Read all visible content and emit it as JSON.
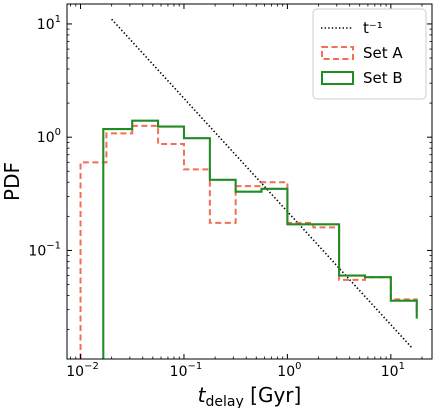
{
  "chart_data": {
    "type": "line",
    "x_scale": "log",
    "y_scale": "log",
    "xlim": [
      0.0074,
      25
    ],
    "ylim": [
      0.011,
      15
    ],
    "xlabel_main": "t",
    "xlabel_sub": "delay",
    "xlabel_unit": "[Gyr]",
    "ylabel": "PDF",
    "x_ticks": [
      {
        "value": 0.01,
        "base": "10",
        "exp": "−2"
      },
      {
        "value": 0.1,
        "base": "10",
        "exp": "−1"
      },
      {
        "value": 1,
        "base": "10",
        "exp": "0"
      },
      {
        "value": 10,
        "base": "10",
        "exp": "1"
      }
    ],
    "y_ticks": [
      {
        "value": 0.1,
        "base": "10",
        "exp": "−1"
      },
      {
        "value": 1,
        "base": "10",
        "exp": "0"
      },
      {
        "value": 10,
        "base": "10",
        "exp": "1"
      }
    ],
    "legend_position": "top-right",
    "grid": false,
    "series": [
      {
        "name": "t⁻¹",
        "kind": "power-law line",
        "style": "dotted",
        "color": "#000000",
        "x": [
          0.02,
          16
        ],
        "y": [
          11.0,
          0.0138
        ]
      },
      {
        "name": "Set A",
        "kind": "step histogram",
        "style": "dashed",
        "color": "#f46d55",
        "edges": [
          0.01,
          0.0178,
          0.0316,
          0.0562,
          0.1,
          0.178,
          0.316,
          0.562,
          1.0,
          1.78,
          3.16,
          5.62,
          10.0,
          17.8
        ],
        "values": [
          0.6,
          1.08,
          1.26,
          0.87,
          0.52,
          0.175,
          0.37,
          0.4,
          0.175,
          0.16,
          0.055,
          0.058,
          0.037,
          0.028
        ]
      },
      {
        "name": "Set B",
        "kind": "step histogram",
        "style": "solid",
        "color": "#228b22",
        "edges": [
          0.0166,
          0.0316,
          0.0562,
          0.1,
          0.178,
          0.316,
          0.562,
          1.0,
          1.78,
          3.16,
          5.62,
          10.0,
          17.8
        ],
        "values": [
          1.18,
          1.4,
          1.24,
          0.98,
          0.42,
          0.33,
          0.35,
          0.17,
          0.17,
          0.06,
          0.058,
          0.036,
          0.025
        ]
      }
    ]
  }
}
